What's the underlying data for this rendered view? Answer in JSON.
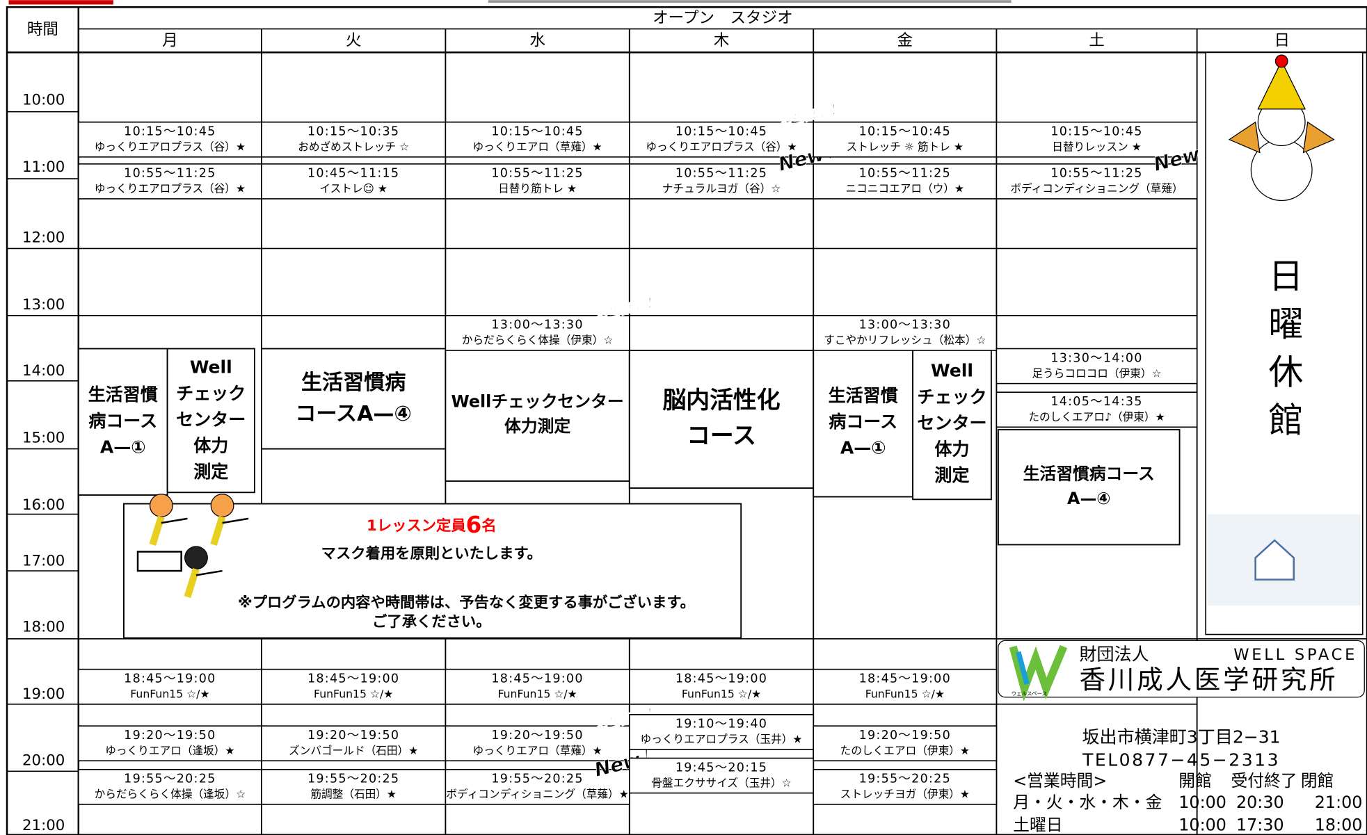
{
  "header": {
    "time_label": "時間",
    "studio": "オープン　スタジオ",
    "days": [
      "月",
      "火",
      "水",
      "木",
      "金",
      "土",
      "日"
    ]
  },
  "times": [
    "10:00",
    "11:00",
    "12:00",
    "13:00",
    "14:00",
    "15:00",
    "16:00",
    "17:00",
    "18:00",
    "19:00",
    "20:00",
    "21:00"
  ],
  "columns": [
    {
      "classes": [
        {
          "time": "10:15〜10:45",
          "name": "ゆっくりエアロプラス（谷）★"
        },
        {
          "time": "10:55〜11:25",
          "name": "ゆっくりエアロプラス（谷）★"
        },
        {
          "time": "18:45〜19:00",
          "name": "FunFun15 ☆/★"
        },
        {
          "time": "19:20〜19:50",
          "name": "ゆっくりエアロ（逢坂）★"
        },
        {
          "time": "19:55〜20:25",
          "name": "からだらくらく体操（逢坂）☆"
        }
      ],
      "blocks": [
        {
          "lines": [
            "生活習慣",
            "病コース",
            "A—①"
          ]
        },
        {
          "lines": [
            "Well",
            "チェック",
            "センター",
            "体力",
            "測定"
          ]
        }
      ]
    },
    {
      "classes": [
        {
          "time": "10:15〜10:35",
          "name": "おめざめストレッチ ☆"
        },
        {
          "time": "10:45〜11:15",
          "name": "イストレ☺ ★"
        },
        {
          "time": "18:45〜19:00",
          "name": "FunFun15 ☆/★"
        },
        {
          "time": "19:20〜19:50",
          "name": "ズンバゴールド（石田）★"
        },
        {
          "time": "19:55〜20:25",
          "name": "筋調整（石田）★"
        }
      ],
      "blocks": [
        {
          "lines": [
            "生活習慣病",
            "コースA—④"
          ]
        }
      ]
    },
    {
      "classes": [
        {
          "time": "10:15〜10:45",
          "name": "ゆっくりエアロ（草薙）★"
        },
        {
          "time": "10:55〜11:25",
          "name": "日替り筋トレ ★"
        },
        {
          "time": "13:00〜13:30",
          "name": "からだらくらく体操（伊東）☆",
          "tag": "担当変更！"
        },
        {
          "time": "18:45〜19:00",
          "name": "FunFun15 ☆/★"
        },
        {
          "time": "19:20〜19:50",
          "name": "ゆっくりエアロ（草薙）★",
          "tag": "担当変更！"
        },
        {
          "time": "19:55〜20:25",
          "name": "ボディコンディショニング（草薙）★",
          "tag": "New！"
        }
      ],
      "blocks": [
        {
          "lines": [
            "Wellチェックセンター",
            "体力測定"
          ]
        }
      ]
    },
    {
      "classes": [
        {
          "time": "10:15〜10:45",
          "name": "ゆっくりエアロプラス（谷）★",
          "tag": "担当変更！"
        },
        {
          "time": "10:55〜11:25",
          "name": "ナチュラルヨガ（谷）☆",
          "tag": "New！"
        },
        {
          "time": "18:45〜19:00",
          "name": "FunFun15 ☆/★"
        },
        {
          "time": "19:10〜19:40",
          "name": "ゆっくりエアロプラス（玉井）★"
        },
        {
          "time": "19:45〜20:15",
          "name": "骨盤エクササイズ（玉井）☆"
        }
      ],
      "blocks": [
        {
          "lines": [
            "脳内活性化",
            "コース"
          ]
        }
      ]
    },
    {
      "classes": [
        {
          "time": "10:15〜10:45",
          "name": "ストレッチ ☼ 筋トレ ★"
        },
        {
          "time": "10:55〜11:25",
          "name": "ニコニコエアロ（ウ）★"
        },
        {
          "time": "13:00〜13:30",
          "name": "すこやかリフレッシュ（松本）☆"
        },
        {
          "time": "18:45〜19:00",
          "name": "FunFun15 ☆/★"
        },
        {
          "time": "19:20〜19:50",
          "name": "たのしくエアロ（伊東）★"
        },
        {
          "time": "19:55〜20:25",
          "name": "ストレッチヨガ（伊東）★"
        }
      ],
      "blocks": [
        {
          "lines": [
            "生活習慣",
            "病コース",
            "A—①"
          ]
        },
        {
          "lines": [
            "Well",
            "チェック",
            "センター",
            "体力",
            "測定"
          ]
        }
      ]
    },
    {
      "classes": [
        {
          "time": "10:15〜10:45",
          "name": "日替りレッスン ★"
        },
        {
          "time": "10:55〜11:25",
          "name": "ボディコンディショニング（草薙）",
          "tag": "New！"
        },
        {
          "time": "13:30〜14:00",
          "name": "足うらコロコロ（伊東）☆"
        },
        {
          "time": "14:05〜14:35",
          "name": "たのしくエアロ♪（伊東）★"
        }
      ],
      "blocks": [
        {
          "lines": [
            "生活習慣病コース",
            "A—④"
          ]
        }
      ]
    }
  ],
  "sunday": [
    "日",
    "曜",
    "休",
    "館"
  ],
  "notice": {
    "capacity_prefix": "1レッスン定員",
    "capacity_number": "6",
    "capacity_suffix": "名",
    "mask": "マスク着用を原則といたします。",
    "warning": "※プログラムの内容や時間帯は、予告なく変更する事がございます。",
    "apology": "ご了承ください。"
  },
  "org": {
    "type": "財団法人",
    "brand": "WELL SPACE",
    "name": "香川成人医学研究所",
    "brand_kana": "ウェルスペース",
    "address": "坂出市横津町3丁目2−31",
    "tel": "TEL0877−45−2313",
    "hours_header": [
      "<営業時間>",
      "開館",
      "受付終了",
      "閉館"
    ],
    "hours": [
      [
        "月・火・水・木・金",
        "10:00",
        "20:30",
        "21:00"
      ],
      [
        "土曜日",
        "10:00",
        "17:30",
        "18:00"
      ]
    ]
  }
}
